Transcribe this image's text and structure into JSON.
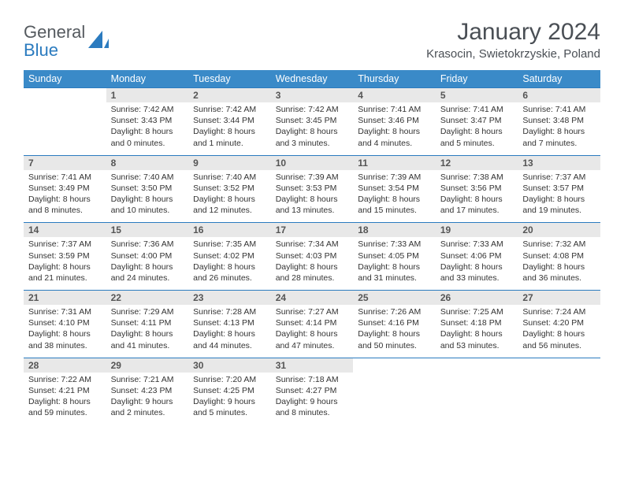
{
  "logo": {
    "text1": "General",
    "text2": "Blue"
  },
  "title": "January 2024",
  "location": "Krasocin, Swietokrzyskie, Poland",
  "colors": {
    "header_bg": "#3a8ac8",
    "header_text": "#ffffff",
    "daynum_bg": "#e8e8e8",
    "row_divider": "#2b7bbf",
    "body_text": "#333333",
    "title_text": "#4a4f55"
  },
  "daysOfWeek": [
    "Sunday",
    "Monday",
    "Tuesday",
    "Wednesday",
    "Thursday",
    "Friday",
    "Saturday"
  ],
  "weeks": [
    [
      null,
      {
        "n": "1",
        "sr": "7:42 AM",
        "ss": "3:43 PM",
        "dl": "8 hours and 0 minutes."
      },
      {
        "n": "2",
        "sr": "7:42 AM",
        "ss": "3:44 PM",
        "dl": "8 hours and 1 minute."
      },
      {
        "n": "3",
        "sr": "7:42 AM",
        "ss": "3:45 PM",
        "dl": "8 hours and 3 minutes."
      },
      {
        "n": "4",
        "sr": "7:41 AM",
        "ss": "3:46 PM",
        "dl": "8 hours and 4 minutes."
      },
      {
        "n": "5",
        "sr": "7:41 AM",
        "ss": "3:47 PM",
        "dl": "8 hours and 5 minutes."
      },
      {
        "n": "6",
        "sr": "7:41 AM",
        "ss": "3:48 PM",
        "dl": "8 hours and 7 minutes."
      }
    ],
    [
      {
        "n": "7",
        "sr": "7:41 AM",
        "ss": "3:49 PM",
        "dl": "8 hours and 8 minutes."
      },
      {
        "n": "8",
        "sr": "7:40 AM",
        "ss": "3:50 PM",
        "dl": "8 hours and 10 minutes."
      },
      {
        "n": "9",
        "sr": "7:40 AM",
        "ss": "3:52 PM",
        "dl": "8 hours and 12 minutes."
      },
      {
        "n": "10",
        "sr": "7:39 AM",
        "ss": "3:53 PM",
        "dl": "8 hours and 13 minutes."
      },
      {
        "n": "11",
        "sr": "7:39 AM",
        "ss": "3:54 PM",
        "dl": "8 hours and 15 minutes."
      },
      {
        "n": "12",
        "sr": "7:38 AM",
        "ss": "3:56 PM",
        "dl": "8 hours and 17 minutes."
      },
      {
        "n": "13",
        "sr": "7:37 AM",
        "ss": "3:57 PM",
        "dl": "8 hours and 19 minutes."
      }
    ],
    [
      {
        "n": "14",
        "sr": "7:37 AM",
        "ss": "3:59 PM",
        "dl": "8 hours and 21 minutes."
      },
      {
        "n": "15",
        "sr": "7:36 AM",
        "ss": "4:00 PM",
        "dl": "8 hours and 24 minutes."
      },
      {
        "n": "16",
        "sr": "7:35 AM",
        "ss": "4:02 PM",
        "dl": "8 hours and 26 minutes."
      },
      {
        "n": "17",
        "sr": "7:34 AM",
        "ss": "4:03 PM",
        "dl": "8 hours and 28 minutes."
      },
      {
        "n": "18",
        "sr": "7:33 AM",
        "ss": "4:05 PM",
        "dl": "8 hours and 31 minutes."
      },
      {
        "n": "19",
        "sr": "7:33 AM",
        "ss": "4:06 PM",
        "dl": "8 hours and 33 minutes."
      },
      {
        "n": "20",
        "sr": "7:32 AM",
        "ss": "4:08 PM",
        "dl": "8 hours and 36 minutes."
      }
    ],
    [
      {
        "n": "21",
        "sr": "7:31 AM",
        "ss": "4:10 PM",
        "dl": "8 hours and 38 minutes."
      },
      {
        "n": "22",
        "sr": "7:29 AM",
        "ss": "4:11 PM",
        "dl": "8 hours and 41 minutes."
      },
      {
        "n": "23",
        "sr": "7:28 AM",
        "ss": "4:13 PM",
        "dl": "8 hours and 44 minutes."
      },
      {
        "n": "24",
        "sr": "7:27 AM",
        "ss": "4:14 PM",
        "dl": "8 hours and 47 minutes."
      },
      {
        "n": "25",
        "sr": "7:26 AM",
        "ss": "4:16 PM",
        "dl": "8 hours and 50 minutes."
      },
      {
        "n": "26",
        "sr": "7:25 AM",
        "ss": "4:18 PM",
        "dl": "8 hours and 53 minutes."
      },
      {
        "n": "27",
        "sr": "7:24 AM",
        "ss": "4:20 PM",
        "dl": "8 hours and 56 minutes."
      }
    ],
    [
      {
        "n": "28",
        "sr": "7:22 AM",
        "ss": "4:21 PM",
        "dl": "8 hours and 59 minutes."
      },
      {
        "n": "29",
        "sr": "7:21 AM",
        "ss": "4:23 PM",
        "dl": "9 hours and 2 minutes."
      },
      {
        "n": "30",
        "sr": "7:20 AM",
        "ss": "4:25 PM",
        "dl": "9 hours and 5 minutes."
      },
      {
        "n": "31",
        "sr": "7:18 AM",
        "ss": "4:27 PM",
        "dl": "9 hours and 8 minutes."
      },
      null,
      null,
      null
    ]
  ],
  "labels": {
    "sunrise": "Sunrise:",
    "sunset": "Sunset:",
    "daylight": "Daylight:"
  }
}
